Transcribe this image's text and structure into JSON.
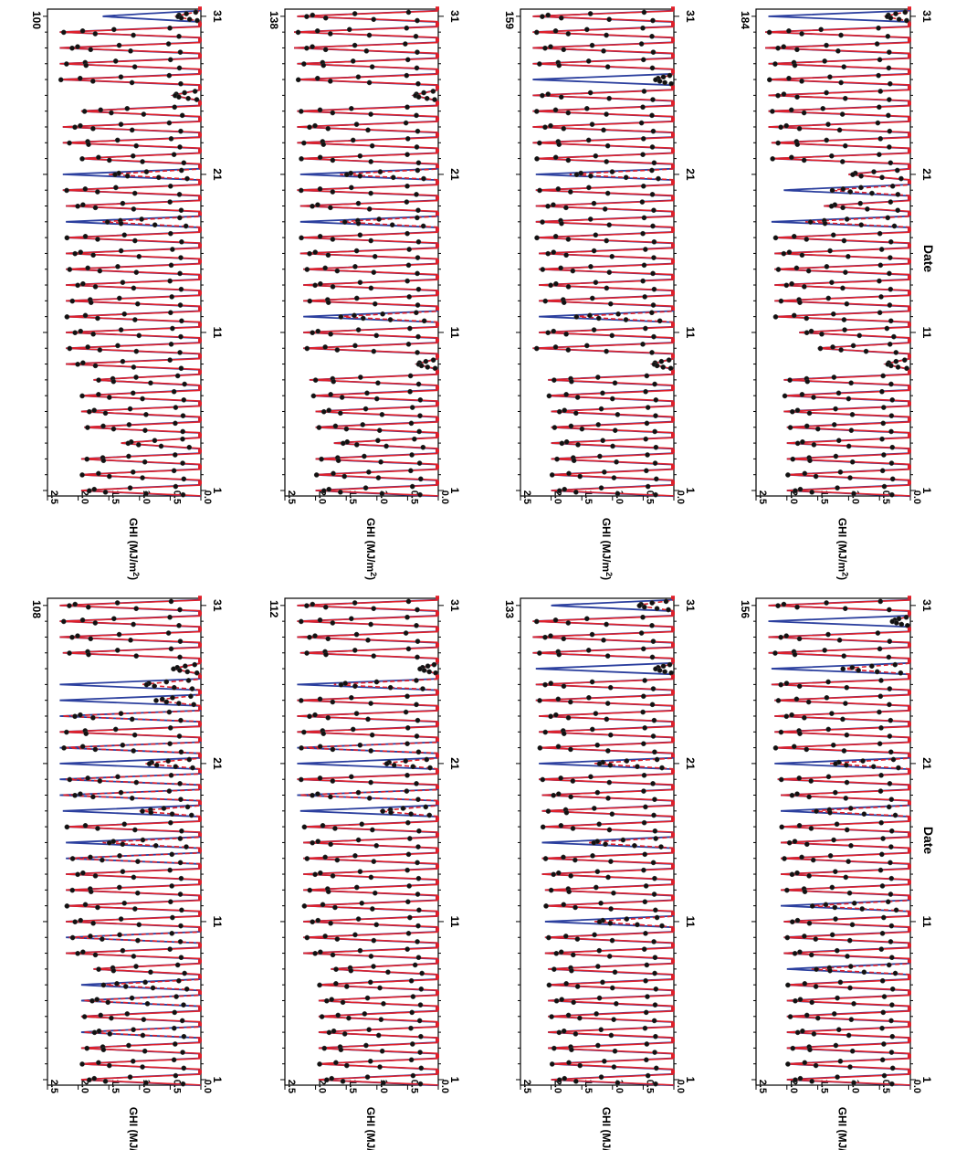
{
  "figure": {
    "orientation": "rotated 90° clockwise",
    "shared_xlabel": "Date"
  },
  "colors": {
    "clear_sky_model": "#2b3f9e",
    "estimated_model": "#e0202a",
    "observed_points": "#111111",
    "axes": "#000000"
  },
  "chart_data": [
    {
      "type": "line",
      "station": "108",
      "ylabel": "GHI (MJ/m2)",
      "xlabel": "Date",
      "xticks": [
        "1",
        "11",
        "21",
        "31"
      ],
      "yticks": [
        "0.0",
        "0.5",
        "1.0",
        "1.5",
        "2.0",
        "2.5"
      ],
      "xlim": [
        1,
        31.5
      ],
      "ylim": [
        0,
        2.5
      ],
      "series": [
        {
          "values": [
            1.95,
            1.95,
            1.95,
            1.95,
            1.95,
            1.95,
            1.95,
            1.75,
            2.2,
            2.2,
            2.2,
            2.2,
            2.2,
            2.2,
            2.2,
            2.2,
            2.2,
            2.25,
            2.3,
            2.3,
            2.3,
            2.3,
            2.3,
            2.3,
            2.3,
            2.3,
            0.45,
            2.25,
            2.3,
            2.3,
            2.3
          ]
        },
        {
          "values": [
            1.95,
            1.95,
            1.95,
            1.9,
            1.95,
            1.9,
            1.6,
            1.75,
            2.2,
            2.15,
            2.2,
            2.2,
            2.2,
            2.2,
            2.15,
            1.6,
            2.2,
            1.0,
            2.25,
            2.2,
            0.9,
            2.25,
            2.3,
            2.25,
            0.75,
            0.95,
            0.45,
            2.25,
            2.3,
            2.3,
            2.3
          ]
        }
      ]
    },
    {
      "type": "line",
      "station": "112",
      "ylabel": "GHI (MJ/m2)",
      "xlabel": "Date",
      "xticks": [
        "1",
        "11",
        "21",
        "31"
      ],
      "yticks": [
        "0.0",
        "0.5",
        "1.0",
        "1.5",
        "2.0",
        "2.5"
      ],
      "xlim": [
        1,
        31.5
      ],
      "ylim": [
        0,
        2.5
      ],
      "series": [
        {
          "values": [
            1.95,
            1.95,
            1.95,
            1.95,
            1.95,
            1.95,
            1.95,
            1.75,
            2.2,
            2.2,
            2.2,
            2.2,
            2.2,
            2.2,
            2.2,
            2.2,
            2.2,
            2.25,
            2.3,
            2.3,
            2.3,
            2.3,
            2.3,
            2.3,
            2.3,
            2.3,
            0.3,
            2.25,
            2.3,
            2.3,
            2.3
          ]
        },
        {
          "values": [
            1.95,
            1.95,
            1.95,
            1.95,
            1.95,
            1.95,
            1.95,
            1.75,
            2.2,
            2.2,
            2.2,
            2.2,
            2.2,
            2.2,
            2.2,
            2.2,
            2.2,
            0.95,
            2.25,
            2.3,
            0.9,
            2.25,
            2.3,
            2.3,
            2.3,
            1.7,
            0.3,
            2.25,
            2.3,
            2.3,
            2.3
          ]
        }
      ]
    },
    {
      "type": "line",
      "station": "133",
      "ylabel": "GHI (MJ/m2)",
      "xlabel": "Date",
      "xticks": [
        "1",
        "11",
        "21",
        "31"
      ],
      "yticks": [
        "0.0",
        "0.5",
        "1.0",
        "1.5",
        "2.0",
        "2.5"
      ],
      "xlim": [
        1,
        31.5
      ],
      "ylim": [
        0,
        2.5
      ],
      "series": [
        {
          "values": [
            2.0,
            2.0,
            2.05,
            2.05,
            2.05,
            2.05,
            2.05,
            2.05,
            2.1,
            2.1,
            2.1,
            2.1,
            2.1,
            2.15,
            2.15,
            2.15,
            2.15,
            2.15,
            2.15,
            2.2,
            2.2,
            2.2,
            2.2,
            2.2,
            2.25,
            2.25,
            2.25,
            2.3,
            2.3,
            2.3,
            2.0
          ]
        },
        {
          "values": [
            2.0,
            2.0,
            2.05,
            2.05,
            2.05,
            2.05,
            2.05,
            2.05,
            2.1,
            2.1,
            1.3,
            2.1,
            2.1,
            2.15,
            2.15,
            1.4,
            2.15,
            2.15,
            2.15,
            2.2,
            1.3,
            2.2,
            2.2,
            2.2,
            2.25,
            2.25,
            0.3,
            2.3,
            2.3,
            2.3,
            0.6
          ]
        }
      ]
    },
    {
      "type": "line",
      "station": "156",
      "ylabel": "GHI (MJ/m2)",
      "xlabel": "Date",
      "xticks": [
        "1",
        "11",
        "21",
        "31"
      ],
      "yticks": [
        "0.0",
        "0.5",
        "1.0",
        "1.5",
        "2.0",
        "2.5"
      ],
      "xlim": [
        1,
        31.5
      ],
      "ylim": [
        0,
        2.5
      ],
      "series": [
        {
          "values": [
            2.0,
            2.0,
            2.0,
            2.0,
            2.0,
            2.0,
            2.0,
            2.0,
            2.05,
            2.05,
            2.05,
            2.1,
            2.1,
            2.1,
            2.1,
            2.1,
            2.1,
            2.1,
            2.1,
            2.15,
            2.2,
            2.2,
            2.2,
            2.2,
            2.2,
            2.25,
            2.25,
            2.3,
            2.3,
            2.3,
            2.3
          ]
        },
        {
          "values": [
            2.0,
            2.0,
            2.0,
            2.0,
            2.0,
            2.0,
            2.0,
            1.6,
            2.05,
            2.05,
            2.05,
            1.6,
            2.1,
            2.1,
            2.1,
            2.1,
            2.1,
            1.6,
            2.1,
            2.15,
            1.3,
            2.2,
            2.2,
            2.2,
            2.2,
            2.25,
            1.1,
            2.3,
            2.3,
            0.3,
            2.3
          ]
        }
      ]
    },
    {
      "type": "line",
      "station": "100",
      "ylabel": "GHI (MJ/m2)",
      "xlabel": "Date",
      "xticks": [
        "1",
        "11",
        "21",
        "31"
      ],
      "yticks": [
        "0.0",
        "0.5",
        "1.0",
        "1.5",
        "2.0",
        "2.5"
      ],
      "xlim": [
        1,
        31.5
      ],
      "ylim": [
        0,
        2.5
      ],
      "series": [
        {
          "values": [
            1.95,
            1.95,
            1.95,
            1.3,
            1.9,
            1.95,
            1.95,
            1.75,
            2.2,
            2.2,
            2.2,
            2.2,
            2.2,
            2.2,
            2.2,
            2.2,
            2.2,
            2.2,
            2.2,
            2.25,
            2.25,
            1.95,
            2.25,
            2.25,
            1.95,
            0.45,
            2.3,
            2.3,
            2.3,
            2.3,
            1.6
          ]
        },
        {
          "values": [
            1.95,
            1.95,
            1.95,
            1.3,
            1.9,
            1.95,
            1.95,
            1.75,
            2.2,
            2.2,
            2.2,
            2.2,
            2.2,
            2.2,
            2.2,
            2.2,
            2.2,
            1.6,
            2.2,
            2.25,
            1.5,
            1.95,
            2.25,
            2.25,
            1.95,
            0.45,
            2.3,
            2.3,
            2.3,
            2.3,
            0.4
          ]
        }
      ]
    },
    {
      "type": "line",
      "station": "138",
      "ylabel": "GHI (MJ/m2)",
      "xlabel": "Date",
      "xticks": [
        "1",
        "11",
        "21",
        "31"
      ],
      "yticks": [
        "0.0",
        "0.5",
        "1.0",
        "1.5",
        "2.0",
        "2.5"
      ],
      "xlim": [
        1,
        31.5
      ],
      "ylim": [
        0,
        2.5
      ],
      "series": [
        {
          "values": [
            2.0,
            2.0,
            2.0,
            1.7,
            2.0,
            2.0,
            2.05,
            2.1,
            0.35,
            2.2,
            2.2,
            2.2,
            2.2,
            2.2,
            2.2,
            2.25,
            2.25,
            2.25,
            2.25,
            2.3,
            2.25,
            2.25,
            2.3,
            2.3,
            2.3,
            0.4,
            2.3,
            2.3,
            2.35,
            2.35,
            2.3
          ]
        },
        {
          "values": [
            2.0,
            2.0,
            2.0,
            1.7,
            2.0,
            2.0,
            2.05,
            2.1,
            0.35,
            2.2,
            2.2,
            1.6,
            2.2,
            2.2,
            2.2,
            2.25,
            2.25,
            1.6,
            2.25,
            2.3,
            1.6,
            2.25,
            2.3,
            2.3,
            2.3,
            0.4,
            2.3,
            2.3,
            2.35,
            2.35,
            2.3
          ]
        }
      ]
    },
    {
      "type": "line",
      "station": "159",
      "ylabel": "GHI (MJ/m2)",
      "xlabel": "Date",
      "xticks": [
        "1",
        "11",
        "21",
        "31"
      ],
      "yticks": [
        "0.0",
        "0.5",
        "1.0",
        "1.5",
        "2.0",
        "2.5"
      ],
      "xlim": [
        1,
        31.5
      ],
      "ylim": [
        0,
        2.5
      ],
      "series": [
        {
          "values": [
            2.0,
            2.0,
            2.0,
            2.0,
            2.0,
            2.0,
            2.05,
            2.05,
            0.35,
            2.3,
            2.2,
            2.2,
            2.2,
            2.2,
            2.2,
            2.2,
            2.25,
            2.25,
            2.25,
            2.25,
            2.25,
            2.25,
            2.3,
            2.3,
            2.3,
            2.3,
            2.3,
            2.3,
            2.3,
            2.3,
            2.3
          ]
        },
        {
          "values": [
            2.0,
            2.0,
            2.0,
            2.0,
            2.0,
            2.0,
            2.05,
            2.05,
            0.35,
            2.3,
            2.2,
            1.6,
            2.2,
            2.2,
            2.2,
            2.2,
            2.25,
            2.25,
            2.25,
            2.25,
            1.7,
            2.25,
            2.3,
            2.3,
            2.3,
            2.3,
            0.3,
            2.3,
            2.3,
            2.3,
            2.3
          ]
        }
      ]
    },
    {
      "type": "line",
      "station": "184",
      "ylabel": "GHI (MJ/m2)",
      "xlabel": "Date",
      "xticks": [
        "1",
        "11",
        "21",
        "31"
      ],
      "yticks": [
        "0.0",
        "0.5",
        "1.0",
        "1.5",
        "2.0",
        "2.5"
      ],
      "xlim": [
        1,
        31.5
      ],
      "ylim": [
        0,
        2.5
      ],
      "series": [
        {
          "values": [
            2.0,
            2.0,
            2.0,
            2.0,
            2.0,
            2.05,
            2.05,
            2.05,
            0.4,
            1.5,
            1.8,
            2.2,
            2.2,
            2.2,
            2.2,
            2.2,
            2.2,
            2.25,
            1.4,
            2.05,
            1.0,
            2.25,
            2.25,
            2.3,
            2.3,
            2.3,
            2.3,
            2.3,
            2.35,
            2.35,
            2.3
          ]
        },
        {
          "values": [
            2.0,
            2.0,
            2.0,
            2.0,
            2.0,
            2.05,
            2.05,
            2.05,
            0.4,
            1.5,
            1.8,
            2.2,
            2.2,
            2.2,
            2.2,
            2.2,
            2.2,
            1.7,
            1.4,
            1.3,
            1.0,
            2.25,
            2.25,
            2.3,
            2.3,
            2.3,
            2.3,
            2.3,
            2.35,
            2.35,
            0.4
          ]
        }
      ]
    }
  ]
}
